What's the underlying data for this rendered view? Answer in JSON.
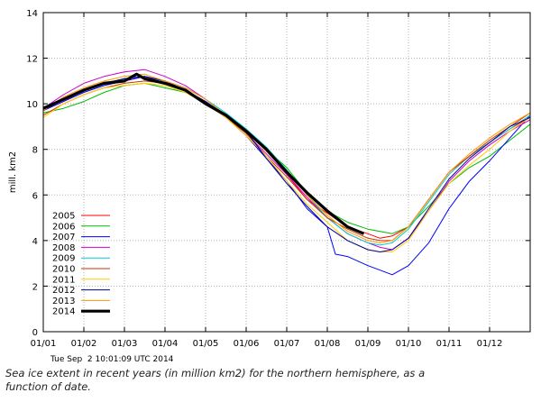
{
  "chart_data": {
    "type": "line",
    "title": "",
    "xlabel": "",
    "ylabel": "mill. km2",
    "ylim": [
      0,
      14
    ],
    "yticks": [
      "0",
      "2",
      "4",
      "6",
      "8",
      "10",
      "12",
      "14"
    ],
    "x_tick_labels": [
      "01/01",
      "01/02",
      "01/03",
      "01/04",
      "01/05",
      "01/06",
      "01/07",
      "01/08",
      "01/09",
      "01/10",
      "01/11",
      "01/12"
    ],
    "x_unit": "month (1 = 01/01, 13 = end of December)",
    "xlim": [
      1,
      13
    ],
    "legend_position": "bottom-left",
    "timestamp": "Tue Sep  2 10:01:09 UTC 2014",
    "series": [
      {
        "name": "2005",
        "color": "#ff0000",
        "points": [
          [
            1,
            9.7
          ],
          [
            1.5,
            10.1
          ],
          [
            2,
            10.6
          ],
          [
            2.5,
            10.9
          ],
          [
            3,
            11.0
          ],
          [
            3.5,
            11.2
          ],
          [
            4,
            10.9
          ],
          [
            4.5,
            10.6
          ],
          [
            5,
            10.1
          ],
          [
            5.5,
            9.4
          ],
          [
            6,
            8.8
          ],
          [
            6.5,
            8.0
          ],
          [
            7,
            6.9
          ],
          [
            7.5,
            5.8
          ],
          [
            8,
            5.2
          ],
          [
            8.5,
            4.6
          ],
          [
            9,
            4.3
          ],
          [
            9.3,
            4.1
          ],
          [
            9.6,
            4.2
          ],
          [
            10,
            4.6
          ],
          [
            10.5,
            5.8
          ],
          [
            11,
            7.0
          ],
          [
            11.5,
            7.7
          ],
          [
            12,
            8.3
          ],
          [
            12.5,
            8.9
          ],
          [
            13,
            9.4
          ]
        ]
      },
      {
        "name": "2006",
        "color": "#00bb00",
        "points": [
          [
            1,
            9.6
          ],
          [
            1.5,
            9.8
          ],
          [
            2,
            10.1
          ],
          [
            2.5,
            10.5
          ],
          [
            3,
            10.8
          ],
          [
            3.5,
            10.9
          ],
          [
            4,
            10.7
          ],
          [
            4.5,
            10.5
          ],
          [
            5,
            10.1
          ],
          [
            5.5,
            9.5
          ],
          [
            6,
            8.9
          ],
          [
            6.5,
            8.0
          ],
          [
            7,
            7.2
          ],
          [
            7.5,
            6.1
          ],
          [
            8,
            5.3
          ],
          [
            8.5,
            4.8
          ],
          [
            9,
            4.5
          ],
          [
            9.3,
            4.4
          ],
          [
            9.6,
            4.3
          ],
          [
            10,
            4.6
          ],
          [
            10.5,
            5.5
          ],
          [
            11,
            6.5
          ],
          [
            11.5,
            7.2
          ],
          [
            12,
            7.7
          ],
          [
            12.5,
            8.4
          ],
          [
            13,
            9.1
          ]
        ]
      },
      {
        "name": "2007",
        "color": "#0000ff",
        "points": [
          [
            1,
            9.7
          ],
          [
            1.5,
            10.1
          ],
          [
            2,
            10.5
          ],
          [
            2.5,
            10.8
          ],
          [
            3,
            11.0
          ],
          [
            3.5,
            11.2
          ],
          [
            4,
            11.0
          ],
          [
            4.5,
            10.6
          ],
          [
            5,
            10.0
          ],
          [
            5.5,
            9.4
          ],
          [
            6,
            8.6
          ],
          [
            6.5,
            7.6
          ],
          [
            7,
            6.6
          ],
          [
            7.5,
            5.4
          ],
          [
            8,
            4.6
          ],
          [
            8.2,
            3.4
          ],
          [
            8.5,
            3.3
          ],
          [
            9,
            2.9
          ],
          [
            9.3,
            2.7
          ],
          [
            9.6,
            2.5
          ],
          [
            10,
            2.9
          ],
          [
            10.5,
            3.9
          ],
          [
            11,
            5.4
          ],
          [
            11.5,
            6.6
          ],
          [
            12,
            7.5
          ],
          [
            12.5,
            8.5
          ],
          [
            13,
            9.5
          ]
        ]
      },
      {
        "name": "2008",
        "color": "#cc00cc",
        "points": [
          [
            1,
            9.8
          ],
          [
            1.5,
            10.4
          ],
          [
            2,
            10.9
          ],
          [
            2.5,
            11.2
          ],
          [
            3,
            11.4
          ],
          [
            3.5,
            11.5
          ],
          [
            4,
            11.2
          ],
          [
            4.5,
            10.8
          ],
          [
            5,
            10.2
          ],
          [
            5.5,
            9.5
          ],
          [
            6,
            8.7
          ],
          [
            6.5,
            7.8
          ],
          [
            7,
            6.9
          ],
          [
            7.5,
            5.9
          ],
          [
            8,
            5.0
          ],
          [
            8.5,
            4.3
          ],
          [
            9,
            3.9
          ],
          [
            9.3,
            3.7
          ],
          [
            9.6,
            3.6
          ],
          [
            10,
            4.1
          ],
          [
            10.5,
            5.3
          ],
          [
            11,
            6.6
          ],
          [
            11.5,
            7.5
          ],
          [
            12,
            8.2
          ],
          [
            12.5,
            8.8
          ],
          [
            13,
            9.3
          ]
        ]
      },
      {
        "name": "2009",
        "color": "#00cccc",
        "points": [
          [
            1,
            9.7
          ],
          [
            1.5,
            10.2
          ],
          [
            2,
            10.6
          ],
          [
            2.5,
            10.9
          ],
          [
            3,
            11.1
          ],
          [
            3.5,
            11.2
          ],
          [
            4,
            11.0
          ],
          [
            4.5,
            10.7
          ],
          [
            5,
            10.2
          ],
          [
            5.5,
            9.6
          ],
          [
            6,
            8.9
          ],
          [
            6.5,
            8.1
          ],
          [
            7,
            7.1
          ],
          [
            7.5,
            6.0
          ],
          [
            8,
            5.0
          ],
          [
            8.5,
            4.3
          ],
          [
            9,
            3.9
          ],
          [
            9.3,
            3.8
          ],
          [
            9.6,
            3.9
          ],
          [
            10,
            4.5
          ],
          [
            10.5,
            5.7
          ],
          [
            11,
            6.9
          ],
          [
            11.5,
            7.7
          ],
          [
            12,
            8.3
          ],
          [
            12.5,
            8.9
          ],
          [
            13,
            9.5
          ]
        ]
      },
      {
        "name": "2010",
        "color": "#cc3300",
        "points": [
          [
            1,
            9.5
          ],
          [
            1.5,
            10.0
          ],
          [
            2,
            10.4
          ],
          [
            2.5,
            10.7
          ],
          [
            3,
            10.9
          ],
          [
            3.5,
            11.0
          ],
          [
            4,
            10.9
          ],
          [
            4.5,
            10.6
          ],
          [
            5,
            10.1
          ],
          [
            5.5,
            9.4
          ],
          [
            6,
            8.7
          ],
          [
            6.5,
            7.7
          ],
          [
            7,
            6.8
          ],
          [
            7.5,
            5.8
          ],
          [
            8,
            5.0
          ],
          [
            8.5,
            4.5
          ],
          [
            9,
            4.1
          ],
          [
            9.3,
            4.0
          ],
          [
            9.6,
            4.0
          ],
          [
            10,
            4.6
          ],
          [
            10.5,
            5.8
          ],
          [
            11,
            7.0
          ],
          [
            11.5,
            7.7
          ],
          [
            12,
            8.4
          ],
          [
            12.5,
            9.0
          ],
          [
            13,
            9.6
          ]
        ]
      },
      {
        "name": "2011",
        "color": "#ffcc00",
        "points": [
          [
            1,
            9.4
          ],
          [
            1.5,
            10.0
          ],
          [
            2,
            10.4
          ],
          [
            2.5,
            10.7
          ],
          [
            3,
            10.8
          ],
          [
            3.5,
            10.9
          ],
          [
            4,
            10.8
          ],
          [
            4.5,
            10.5
          ],
          [
            5,
            10.0
          ],
          [
            5.5,
            9.4
          ],
          [
            6,
            8.6
          ],
          [
            6.5,
            7.7
          ],
          [
            7,
            6.6
          ],
          [
            7.5,
            5.6
          ],
          [
            8,
            4.8
          ],
          [
            8.5,
            4.0
          ],
          [
            9,
            3.6
          ],
          [
            9.3,
            3.5
          ],
          [
            9.6,
            3.5
          ],
          [
            10,
            4.0
          ],
          [
            10.5,
            5.3
          ],
          [
            11,
            6.5
          ],
          [
            11.5,
            7.3
          ],
          [
            12,
            8.0
          ],
          [
            12.5,
            8.8
          ],
          [
            13,
            9.4
          ]
        ]
      },
      {
        "name": "2012",
        "color": "#000099",
        "points": [
          [
            1,
            9.7
          ],
          [
            1.5,
            10.2
          ],
          [
            2,
            10.6
          ],
          [
            2.5,
            10.9
          ],
          [
            3,
            11.1
          ],
          [
            3.5,
            11.2
          ],
          [
            4,
            11.0
          ],
          [
            4.5,
            10.6
          ],
          [
            5,
            10.1
          ],
          [
            5.5,
            9.5
          ],
          [
            6,
            8.8
          ],
          [
            6.5,
            7.6
          ],
          [
            7,
            6.5
          ],
          [
            7.5,
            5.5
          ],
          [
            8,
            4.6
          ],
          [
            8.5,
            4.0
          ],
          [
            9,
            3.6
          ],
          [
            9.3,
            3.5
          ],
          [
            9.6,
            3.6
          ],
          [
            10,
            4.1
          ],
          [
            10.5,
            5.4
          ],
          [
            11,
            6.7
          ],
          [
            11.5,
            7.6
          ],
          [
            12,
            8.3
          ],
          [
            12.5,
            9.0
          ],
          [
            13,
            9.4
          ]
        ]
      },
      {
        "name": "2013",
        "color": "#ff9900",
        "points": [
          [
            1,
            9.7
          ],
          [
            1.5,
            10.3
          ],
          [
            2,
            10.7
          ],
          [
            2.5,
            11.0
          ],
          [
            3,
            11.2
          ],
          [
            3.5,
            11.3
          ],
          [
            4,
            11.0
          ],
          [
            4.5,
            10.7
          ],
          [
            5,
            10.2
          ],
          [
            5.5,
            9.5
          ],
          [
            6,
            8.8
          ],
          [
            6.5,
            7.9
          ],
          [
            7,
            7.0
          ],
          [
            7.5,
            6.0
          ],
          [
            8,
            5.1
          ],
          [
            8.5,
            4.4
          ],
          [
            9,
            4.0
          ],
          [
            9.3,
            3.9
          ],
          [
            9.6,
            4.0
          ],
          [
            10,
            4.6
          ],
          [
            10.5,
            5.8
          ],
          [
            11,
            7.0
          ],
          [
            11.5,
            7.8
          ],
          [
            12,
            8.5
          ],
          [
            12.5,
            9.1
          ],
          [
            13,
            9.6
          ]
        ]
      },
      {
        "name": "2014",
        "color": "#000000",
        "points": [
          [
            1,
            9.8
          ],
          [
            1.5,
            10.2
          ],
          [
            2,
            10.6
          ],
          [
            2.5,
            10.9
          ],
          [
            3,
            11.0
          ],
          [
            3.3,
            11.3
          ],
          [
            3.5,
            11.1
          ],
          [
            4,
            10.9
          ],
          [
            4.5,
            10.6
          ],
          [
            5,
            10.0
          ],
          [
            5.5,
            9.5
          ],
          [
            6,
            8.8
          ],
          [
            6.5,
            8.0
          ],
          [
            7,
            7.0
          ],
          [
            7.5,
            6.1
          ],
          [
            8,
            5.3
          ],
          [
            8.5,
            4.6
          ],
          [
            8.9,
            4.3
          ]
        ]
      }
    ]
  },
  "caption": {
    "line1": "Sea ice extent in recent years (in million km2) for the northern hemisphere, as a",
    "line2": "function of date."
  }
}
